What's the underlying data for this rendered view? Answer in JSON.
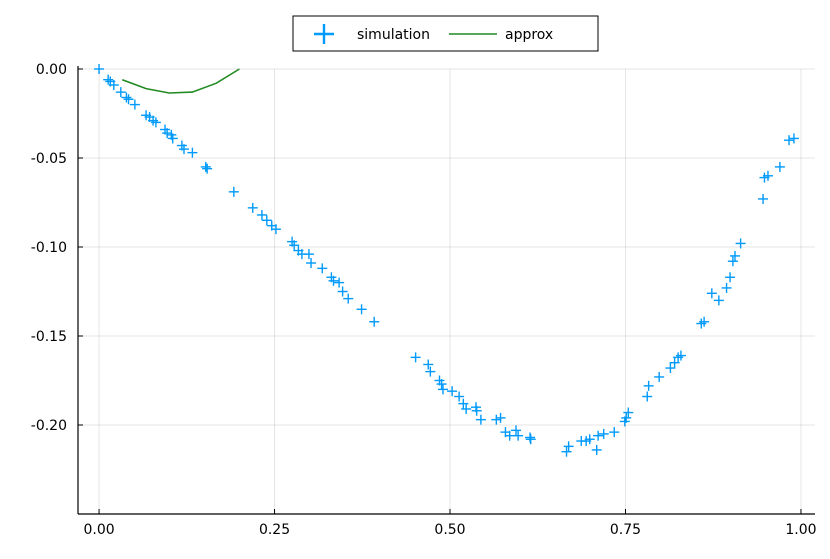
{
  "chart_data": {
    "type": "scatter",
    "title": "",
    "xlabel": "",
    "ylabel": "",
    "xlim": [
      -0.03,
      1.02
    ],
    "ylim": [
      -0.25,
      0.0
    ],
    "grid": true,
    "legend_position": "top-center",
    "x_ticks": [
      0.0,
      0.25,
      0.5,
      0.75,
      1.0
    ],
    "x_tick_labels": [
      "0.00",
      "0.25",
      "0.50",
      "0.75",
      "1.00"
    ],
    "y_ticks": [
      0.0,
      -0.05,
      -0.1,
      -0.15,
      -0.2
    ],
    "y_tick_labels": [
      "0.00",
      "-0.05",
      "-0.10",
      "-0.15",
      "-0.20"
    ],
    "series": [
      {
        "name": "simulation",
        "kind": "scatter",
        "marker": "+",
        "color": "#009AFA",
        "points": [
          [
            0.0,
            0.0
          ],
          [
            0.013,
            -0.006
          ],
          [
            0.016,
            -0.007
          ],
          [
            0.021,
            -0.009
          ],
          [
            0.031,
            -0.013
          ],
          [
            0.039,
            -0.016
          ],
          [
            0.042,
            -0.017
          ],
          [
            0.051,
            -0.02
          ],
          [
            0.067,
            -0.026
          ],
          [
            0.072,
            -0.027
          ],
          [
            0.077,
            -0.029
          ],
          [
            0.081,
            -0.03
          ],
          [
            0.094,
            -0.034
          ],
          [
            0.097,
            -0.036
          ],
          [
            0.103,
            -0.037
          ],
          [
            0.105,
            -0.039
          ],
          [
            0.118,
            -0.043
          ],
          [
            0.121,
            -0.045
          ],
          [
            0.133,
            -0.047
          ],
          [
            0.152,
            -0.055
          ],
          [
            0.154,
            -0.056
          ],
          [
            0.192,
            -0.069
          ],
          [
            0.219,
            -0.078
          ],
          [
            0.232,
            -0.082
          ],
          [
            0.239,
            -0.085
          ],
          [
            0.246,
            -0.088
          ],
          [
            0.252,
            -0.09
          ],
          [
            0.275,
            -0.097
          ],
          [
            0.278,
            -0.099
          ],
          [
            0.284,
            -0.102
          ],
          [
            0.289,
            -0.104
          ],
          [
            0.299,
            -0.104
          ],
          [
            0.302,
            -0.109
          ],
          [
            0.318,
            -0.112
          ],
          [
            0.331,
            -0.117
          ],
          [
            0.334,
            -0.119
          ],
          [
            0.342,
            -0.12
          ],
          [
            0.347,
            -0.125
          ],
          [
            0.355,
            -0.129
          ],
          [
            0.374,
            -0.135
          ],
          [
            0.392,
            -0.142
          ],
          [
            0.451,
            -0.162
          ],
          [
            0.469,
            -0.166
          ],
          [
            0.472,
            -0.17
          ],
          [
            0.485,
            -0.175
          ],
          [
            0.488,
            -0.177
          ],
          [
            0.49,
            -0.18
          ],
          [
            0.503,
            -0.181
          ],
          [
            0.513,
            -0.184
          ],
          [
            0.519,
            -0.188
          ],
          [
            0.523,
            -0.191
          ],
          [
            0.537,
            -0.19
          ],
          [
            0.538,
            -0.192
          ],
          [
            0.544,
            -0.197
          ],
          [
            0.566,
            -0.197
          ],
          [
            0.572,
            -0.196
          ],
          [
            0.579,
            -0.204
          ],
          [
            0.585,
            -0.206
          ],
          [
            0.594,
            -0.203
          ],
          [
            0.597,
            -0.206
          ],
          [
            0.614,
            -0.207
          ],
          [
            0.615,
            -0.208
          ],
          [
            0.666,
            -0.215
          ],
          [
            0.669,
            -0.212
          ],
          [
            0.687,
            -0.209
          ],
          [
            0.694,
            -0.209
          ],
          [
            0.699,
            -0.208
          ],
          [
            0.709,
            -0.214
          ],
          [
            0.711,
            -0.206
          ],
          [
            0.719,
            -0.205
          ],
          [
            0.734,
            -0.204
          ],
          [
            0.749,
            -0.198
          ],
          [
            0.751,
            -0.196
          ],
          [
            0.754,
            -0.193
          ],
          [
            0.781,
            -0.184
          ],
          [
            0.783,
            -0.178
          ],
          [
            0.798,
            -0.173
          ],
          [
            0.814,
            -0.168
          ],
          [
            0.82,
            -0.165
          ],
          [
            0.825,
            -0.162
          ],
          [
            0.829,
            -0.161
          ],
          [
            0.858,
            -0.143
          ],
          [
            0.862,
            -0.142
          ],
          [
            0.873,
            -0.126
          ],
          [
            0.883,
            -0.13
          ],
          [
            0.894,
            -0.123
          ],
          [
            0.899,
            -0.117
          ],
          [
            0.903,
            -0.108
          ],
          [
            0.906,
            -0.105
          ],
          [
            0.914,
            -0.098
          ],
          [
            0.946,
            -0.073
          ],
          [
            0.948,
            -0.061
          ],
          [
            0.953,
            -0.06
          ],
          [
            0.97,
            -0.055
          ],
          [
            0.983,
            -0.04
          ],
          [
            0.99,
            -0.039
          ]
        ]
      },
      {
        "name": "approx",
        "kind": "line",
        "color": "#228B22",
        "points": [
          [
            0.033,
            -0.006
          ],
          [
            0.067,
            -0.011
          ],
          [
            0.1,
            -0.0135
          ],
          [
            0.133,
            -0.013
          ],
          [
            0.167,
            -0.008
          ],
          [
            0.2,
            0.0
          ]
        ]
      }
    ]
  }
}
